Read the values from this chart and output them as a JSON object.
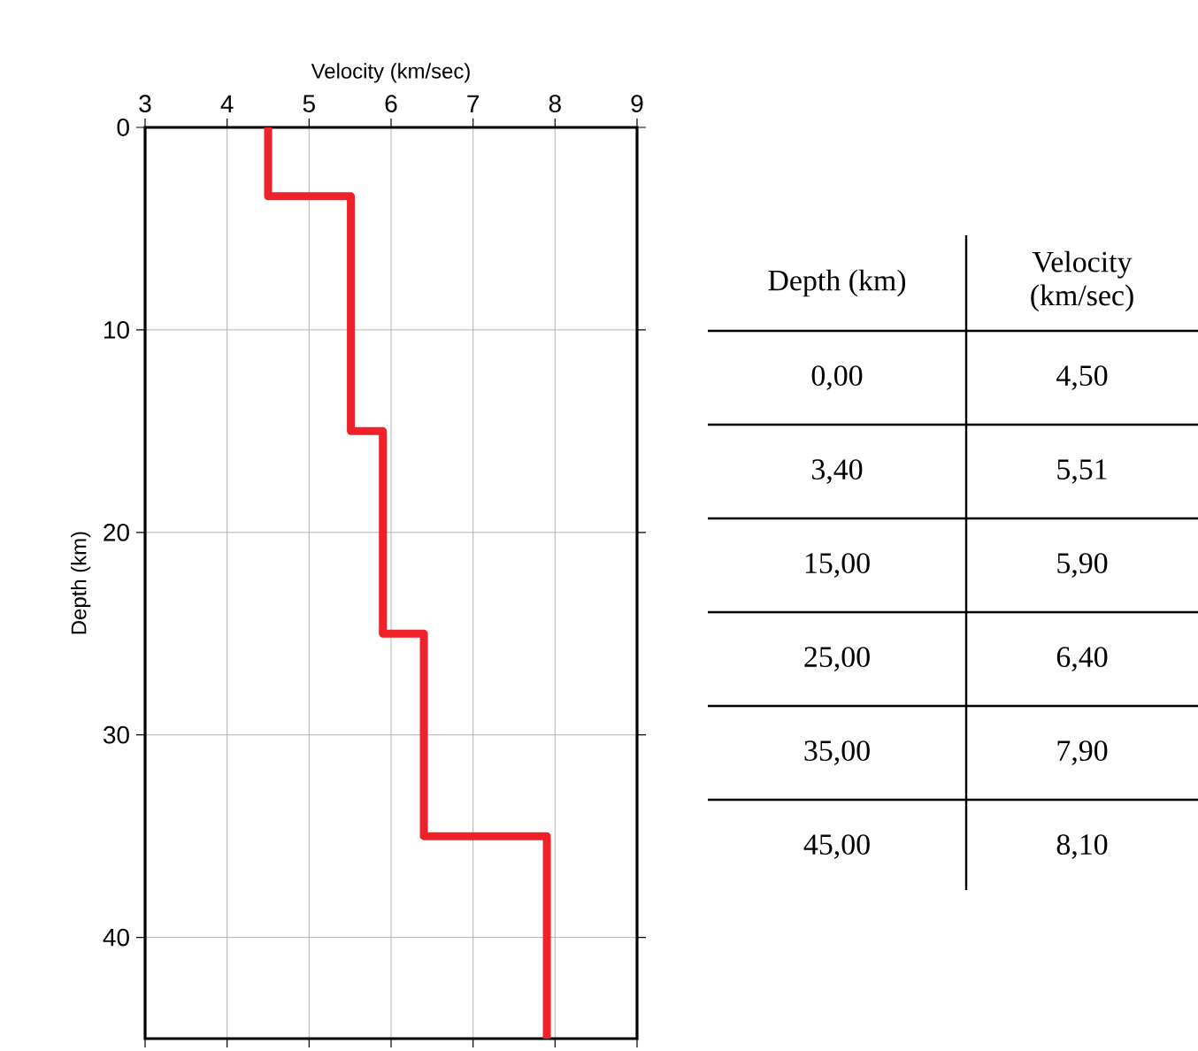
{
  "chart_data": [
    {
      "type": "line",
      "xlabel": "Velocity (km/sec)",
      "ylabel": "Depth (km)",
      "xlim": [
        3,
        9
      ],
      "ylim": [
        45,
        0
      ],
      "xticks": [
        3,
        4,
        5,
        6,
        7,
        8,
        9
      ],
      "yticks": [
        0,
        10,
        20,
        30,
        40
      ],
      "grid": true,
      "line_style": "solid",
      "series": [
        {
          "color": "#ee2228",
          "x": [
            4.5,
            4.5,
            5.51,
            5.51,
            5.9,
            5.9,
            6.4,
            6.4,
            7.9,
            7.9
          ],
          "values": [
            0,
            3.4,
            3.4,
            15,
            15,
            25,
            25,
            35,
            35,
            45
          ]
        }
      ]
    },
    {
      "type": "other",
      "xlabel": "Depth (km)",
      "ylabel": "Velocity (km/sec)",
      "categories": [
        "0,00",
        "3,40",
        "15,00",
        "25,00",
        "35,00",
        "45,00"
      ],
      "value_labels": [
        "4,50",
        "5,51",
        "5,90",
        "6,40",
        "7,90",
        "8,10"
      ]
    }
  ]
}
